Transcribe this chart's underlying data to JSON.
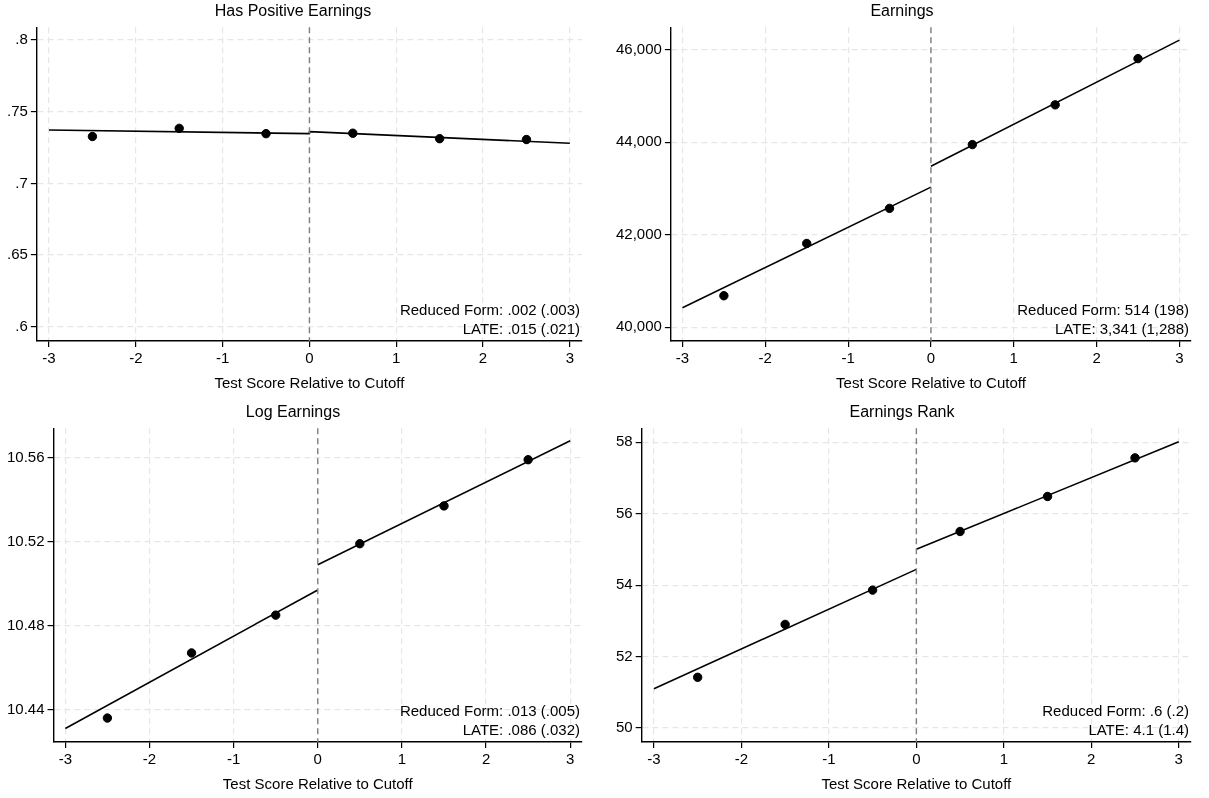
{
  "chart_data": [
    {
      "type": "scatter",
      "title": "Has Positive Earnings",
      "xlabel": "Test Score Relative to Cutoff",
      "xlim": [
        -3.14,
        3.14
      ],
      "xticks": [
        -3,
        -2,
        -1,
        0,
        1,
        2,
        3
      ],
      "ylim": [
        0.59,
        0.809
      ],
      "yticks": [
        {
          "value": 0.6,
          "label": ".6"
        },
        {
          "value": 0.65,
          "label": ".65"
        },
        {
          "value": 0.7,
          "label": ".7"
        },
        {
          "value": 0.75,
          "label": ".75"
        },
        {
          "value": 0.8,
          "label": ".8"
        }
      ],
      "grid": true,
      "legend": false,
      "line_style": "solid",
      "annotations": [
        "Reduced Form: .002 (.003)",
        "LATE: .015 (.021)"
      ],
      "ref_lines": [
        {
          "axis": "x",
          "value": 0,
          "color": "#808080",
          "line_style": "dashed"
        }
      ],
      "x": [
        -2.5,
        -1.5,
        -0.5,
        0.5,
        1.5,
        2.5
      ],
      "series": [
        {
          "marker": "circle",
          "color": "#000000",
          "values": [
            0.7327,
            0.7384,
            0.7347,
            0.735,
            0.7312,
            0.7306
          ]
        },
        {
          "type": "line",
          "marker": "none",
          "color": "#000000",
          "x": [
            -3,
            0,
            0,
            3
          ],
          "values": [
            0.7373,
            0.7347,
            0.7361,
            0.728
          ]
        }
      ]
    },
    {
      "type": "scatter",
      "title": "Earnings",
      "xlabel": "Test Score Relative to Cutoff",
      "xlim": [
        -3.14,
        3.14
      ],
      "xticks": [
        -3,
        -2,
        -1,
        0,
        1,
        2,
        3
      ],
      "ylim": [
        39700,
        46490
      ],
      "yticks": [
        {
          "value": 40000,
          "label": "40,000"
        },
        {
          "value": 42000,
          "label": "42,000"
        },
        {
          "value": 44000,
          "label": "44,000"
        },
        {
          "value": 46000,
          "label": "46,000"
        }
      ],
      "grid": true,
      "legend": false,
      "line_style": "solid",
      "annotations": [
        "Reduced Form: 514 (198)",
        "LATE: 3,341 (1,288)"
      ],
      "ref_lines": [
        {
          "axis": "x",
          "value": 0,
          "color": "#808080",
          "line_style": "dashed"
        }
      ],
      "x": [
        -2.5,
        -1.5,
        -0.5,
        0.5,
        1.5,
        2.5
      ],
      "series": [
        {
          "marker": "circle",
          "color": "#000000",
          "values": [
            40680,
            41810,
            42570,
            43950,
            44810,
            45810
          ]
        },
        {
          "type": "line",
          "marker": "none",
          "color": "#000000",
          "x": [
            -3,
            0
          ],
          "values": [
            40420,
            43030
          ]
        },
        {
          "type": "line",
          "marker": "none",
          "color": "#000000",
          "x": [
            0,
            3
          ],
          "values": [
            43480,
            46210
          ]
        }
      ]
    },
    {
      "type": "scatter",
      "title": "Log Earnings",
      "xlabel": "Test Score Relative to Cutoff",
      "xlim": [
        -3.14,
        3.14
      ],
      "xticks": [
        -3,
        -2,
        -1,
        0,
        1,
        2,
        3
      ],
      "ylim": [
        10.4246,
        10.574
      ],
      "yticks": [
        10.44,
        10.48,
        10.52,
        10.56
      ],
      "grid": true,
      "legend": false,
      "line_style": "solid",
      "annotations": [
        "Reduced Form: .013 (.005)",
        "LATE: .086 (.032)"
      ],
      "ref_lines": [
        {
          "axis": "x",
          "value": 0,
          "color": "#808080",
          "line_style": "dashed"
        }
      ],
      "x": [
        -2.5,
        -1.5,
        -0.5,
        0.5,
        1.5,
        2.5
      ],
      "series": [
        {
          "marker": "circle",
          "color": "#000000",
          "values": [
            10.436,
            10.467,
            10.485,
            10.519,
            10.537,
            10.559
          ]
        },
        {
          "type": "line",
          "marker": "none",
          "color": "#000000",
          "x": [
            -3,
            0
          ],
          "values": [
            10.431,
            10.497
          ]
        },
        {
          "type": "line",
          "marker": "none",
          "color": "#000000",
          "x": [
            0,
            3
          ],
          "values": [
            10.509,
            10.568
          ]
        }
      ]
    },
    {
      "type": "scatter",
      "title": "Earnings Rank",
      "xlabel": "Test Score Relative to Cutoff",
      "xlim": [
        -3.14,
        3.14
      ],
      "xticks": [
        -3,
        -2,
        -1,
        0,
        1,
        2,
        3
      ],
      "ylim": [
        49.61,
        58.39
      ],
      "yticks": [
        50,
        52,
        54,
        56,
        58
      ],
      "grid": true,
      "legend": false,
      "line_style": "solid",
      "annotations": [
        "Reduced Form: .6 (.2)",
        "LATE: 4.1 (1.4)"
      ],
      "ref_lines": [
        {
          "axis": "x",
          "value": 0,
          "color": "#808080",
          "line_style": "dashed"
        }
      ],
      "x": [
        -2.5,
        -1.5,
        -0.5,
        0.5,
        1.5,
        2.5
      ],
      "series": [
        {
          "marker": "circle",
          "color": "#000000",
          "values": [
            51.42,
            52.9,
            53.86,
            55.5,
            56.48,
            57.56
          ]
        },
        {
          "type": "line",
          "marker": "none",
          "color": "#000000",
          "x": [
            -3,
            0
          ],
          "values": [
            51.1,
            54.44
          ]
        },
        {
          "type": "line",
          "marker": "none",
          "color": "#000000",
          "x": [
            0,
            3
          ],
          "values": [
            55.0,
            58.01
          ]
        }
      ]
    }
  ]
}
